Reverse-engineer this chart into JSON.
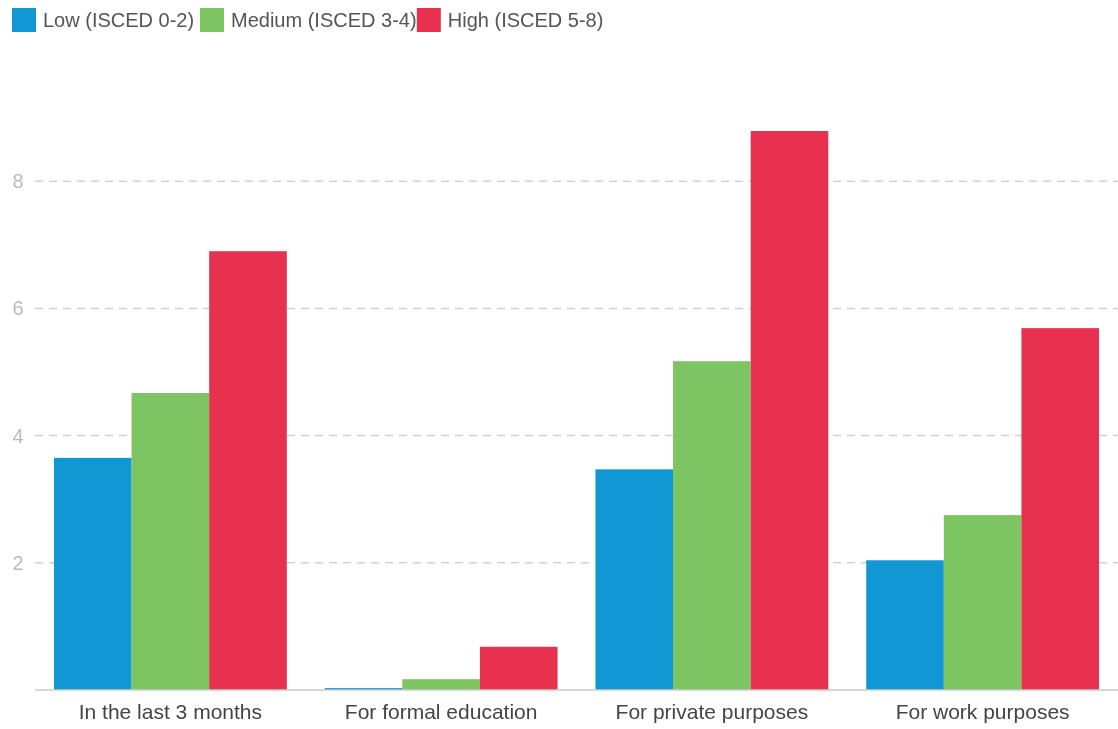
{
  "chart_data": {
    "type": "bar",
    "categories": [
      "In the last 3 months",
      "For formal education",
      "For private purposes",
      "For work purposes"
    ],
    "series": [
      {
        "name": "Low (ISCED 0-2)",
        "color": "#1197d3",
        "values": [
          3.65,
          0.03,
          3.47,
          2.04
        ]
      },
      {
        "name": "Medium (ISCED 3-4)",
        "color": "#7dc462",
        "values": [
          4.67,
          0.17,
          5.17,
          2.75
        ]
      },
      {
        "name": "High (ISCED 5-8)",
        "color": "#e8304f",
        "values": [
          6.9,
          0.68,
          8.79,
          5.69
        ]
      }
    ],
    "ylim": [
      0,
      8.79
    ],
    "yticks": [
      {
        "value": 0,
        "label": null
      },
      2,
      4,
      6,
      8
    ],
    "grid": "y",
    "legend": "top left"
  }
}
